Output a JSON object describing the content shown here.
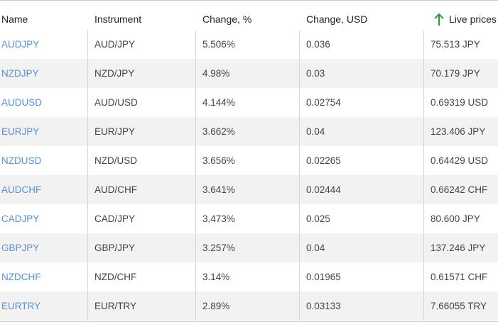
{
  "table": {
    "columns": [
      "Name",
      "Instrument",
      "Change, %",
      "Change, USD",
      "Live prices"
    ],
    "rows": [
      [
        "AUDJPY",
        "AUD/JPY",
        "5.506%",
        "0.036",
        "75.513 JPY"
      ],
      [
        "NZDJPY",
        "NZD/JPY",
        "4.98%",
        "0.03",
        "70.179 JPY"
      ],
      [
        "AUDUSD",
        "AUD/USD",
        "4.144%",
        "0.02754",
        "0.69319 USD"
      ],
      [
        "EURJPY",
        "EUR/JPY",
        "3.662%",
        "0.04",
        "123.406 JPY"
      ],
      [
        "NZDUSD",
        "NZD/USD",
        "3.656%",
        "0.02265",
        "0.64429 USD"
      ],
      [
        "AUDCHF",
        "AUD/CHF",
        "3.641%",
        "0.02444",
        "0.66242 CHF"
      ],
      [
        "CADJPY",
        "CAD/JPY",
        "3.473%",
        "0.025",
        "80.600 JPY"
      ],
      [
        "GBPJPY",
        "GBP/JPY",
        "3.257%",
        "0.04",
        "137.246 JPY"
      ],
      [
        "NZDCHF",
        "NZD/CHF",
        "3.14%",
        "0.01965",
        "0.61571 CHF"
      ],
      [
        "EURTRY",
        "EUR/TRY",
        "2.89%",
        "0.03133",
        "7.66055 TRY"
      ]
    ]
  }
}
